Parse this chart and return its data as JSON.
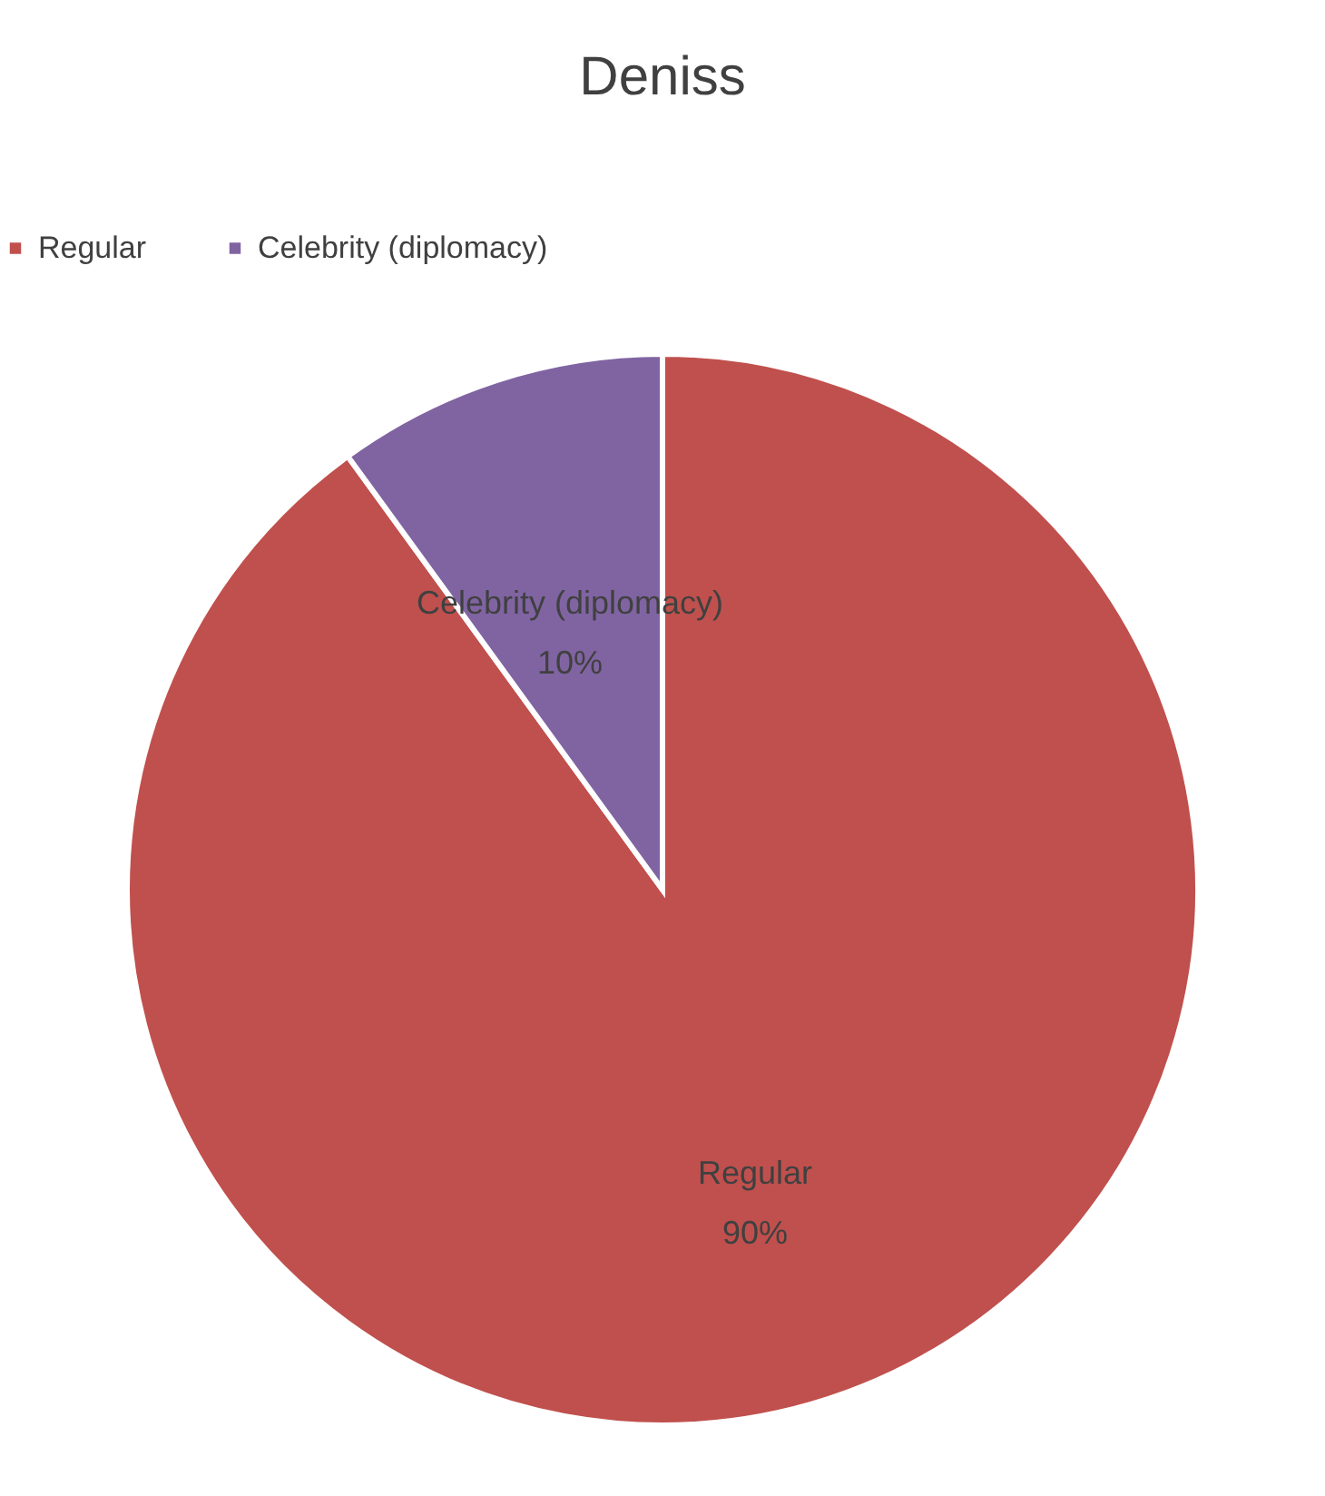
{
  "chart_data": {
    "type": "pie",
    "title": "Deniss",
    "categories": [
      "Regular",
      "Celebrity (diplomacy)"
    ],
    "values": [
      90,
      10
    ],
    "value_labels": [
      "90%",
      "10%"
    ],
    "colors": [
      "#c0504d",
      "#8064a2"
    ],
    "legend": "top"
  }
}
